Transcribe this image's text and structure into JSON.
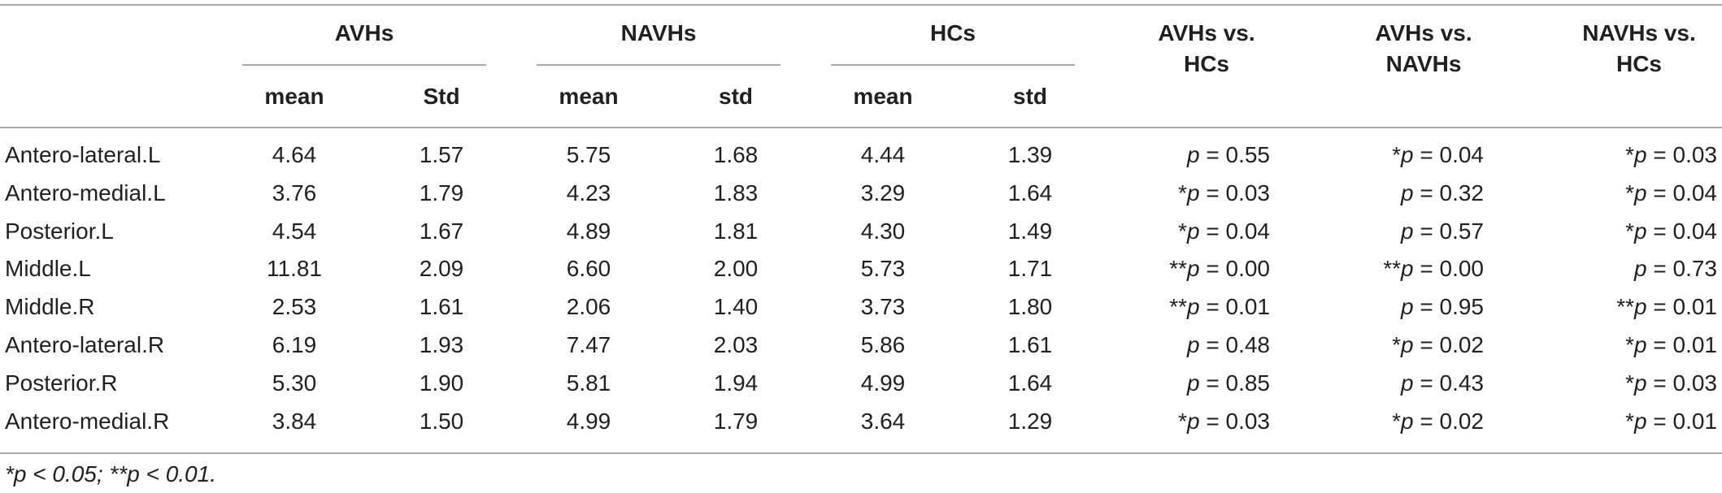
{
  "header": {
    "groups": [
      "AVHs",
      "NAVHs",
      "HCs"
    ],
    "subcols": [
      "mean",
      "Std",
      "mean",
      "std",
      "mean",
      "std"
    ],
    "comparisons": [
      {
        "line1": "AVHs vs.",
        "line2": "HCs"
      },
      {
        "line1": "AVHs vs.",
        "line2": "NAVHs"
      },
      {
        "line1": "NAVHs vs.",
        "line2": "HCs"
      }
    ]
  },
  "rows": [
    {
      "region": "Antero-lateral.L",
      "avhs_mean": "4.64",
      "avhs_std": "1.57",
      "navhs_mean": "5.75",
      "navhs_std": "1.68",
      "hcs_mean": "4.44",
      "hcs_std": "1.39",
      "c1": {
        "mark": "",
        "p": "p",
        "val": " = 0.55"
      },
      "c2": {
        "mark": "*",
        "p": "p",
        "val": " = 0.04"
      },
      "c3": {
        "mark": "*",
        "p": "p",
        "val": " = 0.03"
      }
    },
    {
      "region": "Antero-medial.L",
      "avhs_mean": "3.76",
      "avhs_std": "1.79",
      "navhs_mean": "4.23",
      "navhs_std": "1.83",
      "hcs_mean": "3.29",
      "hcs_std": "1.64",
      "c1": {
        "mark": "*",
        "p": "p",
        "val": " = 0.03"
      },
      "c2": {
        "mark": "",
        "p": "p",
        "val": " = 0.32"
      },
      "c3": {
        "mark": "*",
        "p": "p",
        "val": " = 0.04"
      }
    },
    {
      "region": "Posterior.L",
      "avhs_mean": "4.54",
      "avhs_std": "1.67",
      "navhs_mean": "4.89",
      "navhs_std": "1.81",
      "hcs_mean": "4.30",
      "hcs_std": "1.49",
      "c1": {
        "mark": "*",
        "p": "p",
        "val": " = 0.04"
      },
      "c2": {
        "mark": "",
        "p": "p",
        "val": " = 0.57"
      },
      "c3": {
        "mark": "*",
        "p": "p",
        "val": " = 0.04"
      }
    },
    {
      "region": "Middle.L",
      "avhs_mean": "11.81",
      "avhs_std": "2.09",
      "navhs_mean": "6.60",
      "navhs_std": "2.00",
      "hcs_mean": "5.73",
      "hcs_std": "1.71",
      "c1": {
        "mark": "**",
        "p": "p",
        "val": " = 0.00"
      },
      "c2": {
        "mark": "**",
        "p": "p",
        "val": " = 0.00"
      },
      "c3": {
        "mark": "",
        "p": "p",
        "val": " = 0.73"
      }
    },
    {
      "region": "Middle.R",
      "avhs_mean": "2.53",
      "avhs_std": "1.61",
      "navhs_mean": "2.06",
      "navhs_std": "1.40",
      "hcs_mean": "3.73",
      "hcs_std": "1.80",
      "c1": {
        "mark": "**",
        "p": "p",
        "val": " = 0.01"
      },
      "c2": {
        "mark": "",
        "p": "p",
        "val": " = 0.95"
      },
      "c3": {
        "mark": "**",
        "p": "p",
        "val": " = 0.01"
      }
    },
    {
      "region": "Antero-lateral.R",
      "avhs_mean": "6.19",
      "avhs_std": "1.93",
      "navhs_mean": "7.47",
      "navhs_std": "2.03",
      "hcs_mean": "5.86",
      "hcs_std": "1.61",
      "c1": {
        "mark": "",
        "p": "p",
        "val": " = 0.48"
      },
      "c2": {
        "mark": "*",
        "p": "p",
        "val": " = 0.02"
      },
      "c3": {
        "mark": "*",
        "p": "p",
        "val": " = 0.01"
      }
    },
    {
      "region": "Posterior.R",
      "avhs_mean": "5.30",
      "avhs_std": "1.90",
      "navhs_mean": "5.81",
      "navhs_std": "1.94",
      "hcs_mean": "4.99",
      "hcs_std": "1.64",
      "c1": {
        "mark": "",
        "p": "p",
        "val": " = 0.85"
      },
      "c2": {
        "mark": "",
        "p": "p",
        "val": " = 0.43"
      },
      "c3": {
        "mark": "*",
        "p": "p",
        "val": " = 0.03"
      }
    },
    {
      "region": "Antero-medial.R",
      "avhs_mean": "3.84",
      "avhs_std": "1.50",
      "navhs_mean": "4.99",
      "navhs_std": "1.79",
      "hcs_mean": "3.64",
      "hcs_std": "1.29",
      "c1": {
        "mark": "*",
        "p": "p",
        "val": " = 0.03"
      },
      "c2": {
        "mark": "*",
        "p": "p",
        "val": " = 0.02"
      },
      "c3": {
        "mark": "*",
        "p": "p",
        "val": " = 0.01"
      }
    }
  ],
  "footnote": "*p < 0.05; **p < 0.01."
}
